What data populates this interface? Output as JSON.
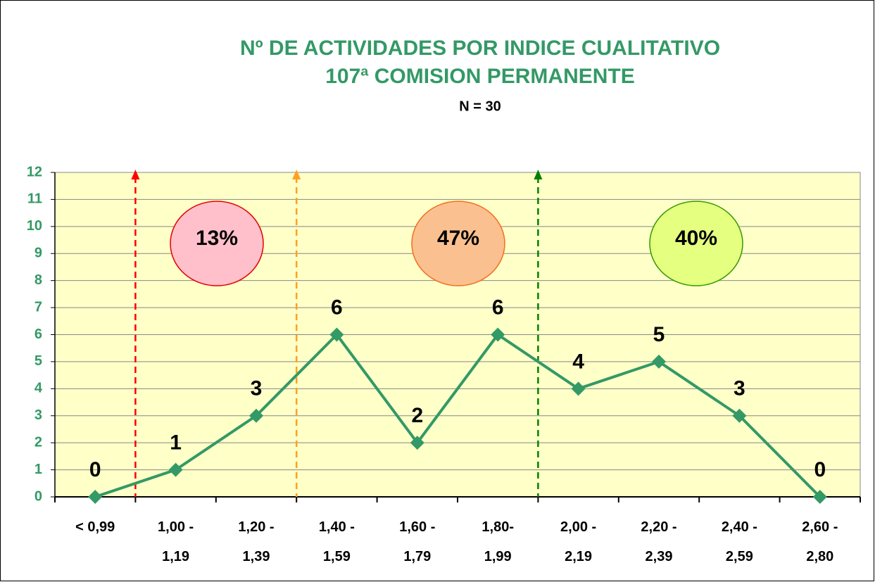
{
  "chart_data": {
    "type": "line",
    "title": "Nº DE ACTIVIDADES POR INDICE CUALITATIVO",
    "subtitle": "107ª COMISION PERMANENTE",
    "note": "N = 30",
    "categories": [
      "< 0,99",
      "1,00 -\n1,19",
      "1,20 -\n1,39",
      "1,40 -\n1,59",
      "1,60 -\n1,79",
      "1,80-\n1,99",
      "2,00 -\n2,19",
      "2,20 -\n2,39",
      "2,40 -\n2,59",
      "2,60 -\n2,80"
    ],
    "series": [
      {
        "color": "#339966",
        "values": [
          0,
          1,
          3,
          6,
          2,
          6,
          4,
          5,
          3,
          0
        ]
      }
    ],
    "ylim": [
      0,
      12
    ],
    "yticks": [
      0,
      1,
      2,
      3,
      4,
      5,
      6,
      7,
      8,
      9,
      10,
      11,
      12
    ],
    "grid": true,
    "annotations": [
      "13%",
      "47%",
      "40%"
    ]
  }
}
